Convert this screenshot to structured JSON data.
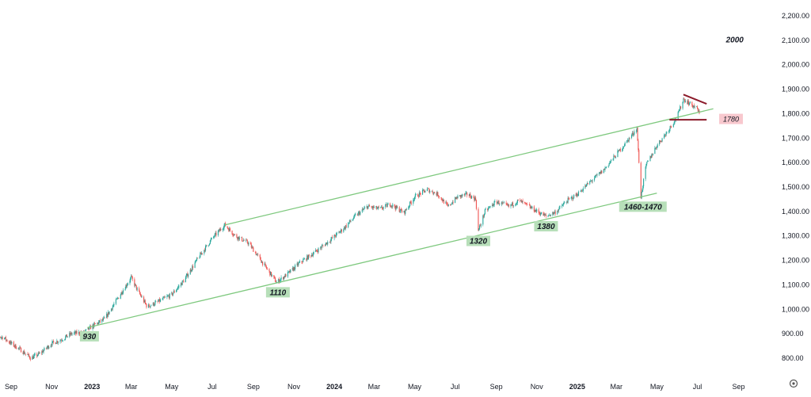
{
  "chart_data": {
    "type": "candlestick",
    "title": "",
    "xlabel": "",
    "ylabel": "",
    "grid": false,
    "ylim": [
      780,
      2230
    ],
    "y_ticks": [
      "2,200.00",
      "2,100.00",
      "2,000.00",
      "1,900.00",
      "1,800.00",
      "1,700.00",
      "1,600.00",
      "1,500.00",
      "1,400.00",
      "1,300.00",
      "1,200.00",
      "1,100.00",
      "1,000.00",
      "900.00",
      "800.00"
    ],
    "y_tick_values": [
      2200,
      2100,
      2000,
      1900,
      1800,
      1700,
      1600,
      1500,
      1400,
      1300,
      1200,
      1100,
      1000,
      900,
      800
    ],
    "x_ticks": [
      {
        "label": "Sep",
        "date": "2022-09-01",
        "bold": false
      },
      {
        "label": "Nov",
        "date": "2022-11-01",
        "bold": false
      },
      {
        "label": "2023",
        "date": "2023-01-01",
        "bold": true
      },
      {
        "label": "Mar",
        "date": "2023-03-01",
        "bold": false
      },
      {
        "label": "May",
        "date": "2023-05-01",
        "bold": false
      },
      {
        "label": "Jul",
        "date": "2023-07-01",
        "bold": false
      },
      {
        "label": "Sep",
        "date": "2023-09-01",
        "bold": false
      },
      {
        "label": "Nov",
        "date": "2023-11-01",
        "bold": false
      },
      {
        "label": "2024",
        "date": "2024-01-01",
        "bold": true
      },
      {
        "label": "Mar",
        "date": "2024-03-01",
        "bold": false
      },
      {
        "label": "May",
        "date": "2024-05-01",
        "bold": false
      },
      {
        "label": "Jul",
        "date": "2024-07-01",
        "bold": false
      },
      {
        "label": "Sep",
        "date": "2024-09-01",
        "bold": false
      },
      {
        "label": "Nov",
        "date": "2024-11-01",
        "bold": false
      },
      {
        "label": "2025",
        "date": "2025-01-01",
        "bold": true
      },
      {
        "label": "Mar",
        "date": "2025-03-01",
        "bold": false
      },
      {
        "label": "May",
        "date": "2025-05-01",
        "bold": false
      },
      {
        "label": "Jul",
        "date": "2025-07-01",
        "bold": false
      },
      {
        "label": "Sep",
        "date": "2025-09-01",
        "bold": false
      }
    ],
    "price_path": [
      [
        "2022-08-01",
        895
      ],
      [
        "2022-08-20",
        885
      ],
      [
        "2022-09-01",
        860
      ],
      [
        "2022-09-15",
        835
      ],
      [
        "2022-10-01",
        800
      ],
      [
        "2022-10-15",
        820
      ],
      [
        "2022-11-01",
        860
      ],
      [
        "2022-11-15",
        875
      ],
      [
        "2022-12-01",
        900
      ],
      [
        "2022-12-20",
        905
      ],
      [
        "2023-01-01",
        930
      ],
      [
        "2023-01-20",
        960
      ],
      [
        "2023-02-10",
        1050
      ],
      [
        "2023-03-01",
        1130
      ],
      [
        "2023-03-10",
        1080
      ],
      [
        "2023-03-25",
        1010
      ],
      [
        "2023-04-10",
        1030
      ],
      [
        "2023-05-01",
        1060
      ],
      [
        "2023-05-20",
        1120
      ],
      [
        "2023-06-10",
        1210
      ],
      [
        "2023-07-01",
        1290
      ],
      [
        "2023-07-20",
        1345
      ],
      [
        "2023-08-05",
        1300
      ],
      [
        "2023-08-25",
        1270
      ],
      [
        "2023-09-15",
        1190
      ],
      [
        "2023-10-06",
        1110
      ],
      [
        "2023-10-25",
        1150
      ],
      [
        "2023-11-10",
        1190
      ],
      [
        "2023-12-01",
        1230
      ],
      [
        "2023-12-20",
        1270
      ],
      [
        "2024-01-15",
        1330
      ],
      [
        "2024-02-01",
        1380
      ],
      [
        "2024-02-20",
        1420
      ],
      [
        "2024-03-10",
        1410
      ],
      [
        "2024-03-25",
        1430
      ],
      [
        "2024-04-15",
        1395
      ],
      [
        "2024-05-01",
        1460
      ],
      [
        "2024-05-20",
        1490
      ],
      [
        "2024-06-05",
        1470
      ],
      [
        "2024-06-20",
        1420
      ],
      [
        "2024-07-05",
        1460
      ],
      [
        "2024-07-20",
        1470
      ],
      [
        "2024-08-01",
        1450
      ],
      [
        "2024-08-05",
        1320
      ],
      [
        "2024-08-15",
        1400
      ],
      [
        "2024-09-01",
        1440
      ],
      [
        "2024-09-20",
        1420
      ],
      [
        "2024-10-05",
        1445
      ],
      [
        "2024-10-20",
        1420
      ],
      [
        "2024-11-05",
        1395
      ],
      [
        "2024-11-15",
        1380
      ],
      [
        "2024-12-01",
        1400
      ],
      [
        "2024-12-15",
        1440
      ],
      [
        "2025-01-01",
        1470
      ],
      [
        "2025-01-20",
        1520
      ],
      [
        "2025-02-10",
        1570
      ],
      [
        "2025-02-25",
        1620
      ],
      [
        "2025-03-15",
        1680
      ],
      [
        "2025-04-01",
        1740
      ],
      [
        "2025-04-07",
        1460
      ],
      [
        "2025-04-15",
        1590
      ],
      [
        "2025-05-01",
        1670
      ],
      [
        "2025-05-15",
        1720
      ],
      [
        "2025-06-01",
        1790
      ],
      [
        "2025-06-10",
        1860
      ],
      [
        "2025-06-20",
        1840
      ],
      [
        "2025-07-01",
        1820
      ],
      [
        "2025-07-05",
        1790
      ]
    ],
    "channel_lines": [
      {
        "name": "upper-channel",
        "color": "#7fc97f",
        "points": [
          [
            "2023-07-20",
            1345
          ],
          [
            "2025-07-25",
            1820
          ]
        ]
      },
      {
        "name": "lower-channel",
        "color": "#7fc97f",
        "points": [
          [
            "2022-12-25",
            925
          ],
          [
            "2025-05-01",
            1475
          ]
        ]
      }
    ],
    "triangle_lines": [
      {
        "name": "triangle-top",
        "color": "#8b1a2a",
        "points": [
          [
            "2025-06-10",
            1878
          ],
          [
            "2025-07-15",
            1840
          ]
        ]
      },
      {
        "name": "triangle-bottom",
        "color": "#8b1a2a",
        "points": [
          [
            "2025-05-20",
            1775
          ],
          [
            "2025-07-15",
            1775
          ]
        ]
      }
    ],
    "annotations": [
      {
        "text": "930",
        "date": "2022-12-28",
        "value": 930,
        "style": "green"
      },
      {
        "text": "1110",
        "date": "2023-10-08",
        "value": 1110,
        "style": "green"
      },
      {
        "text": "1320",
        "date": "2024-08-05",
        "value": 1320,
        "style": "green"
      },
      {
        "text": "1380",
        "date": "2024-11-15",
        "value": 1380,
        "style": "green"
      },
      {
        "text": "1460-1470",
        "date": "2025-04-10",
        "value": 1460,
        "style": "green"
      },
      {
        "text": "1780",
        "date": "2025-07-10",
        "value": 1780,
        "style": "red"
      },
      {
        "text": "2000",
        "date": "2025-07-25",
        "value": 2000,
        "style": "plain"
      }
    ],
    "colors": {
      "up": "#26a69a",
      "down": "#ef5350",
      "channel": "#7fc97f",
      "triangle": "#8b1a2a",
      "label_green_bg": "#b7dfb9",
      "label_red_bg": "#f8c8ce"
    }
  },
  "icons": {
    "settings": "gear-icon"
  }
}
